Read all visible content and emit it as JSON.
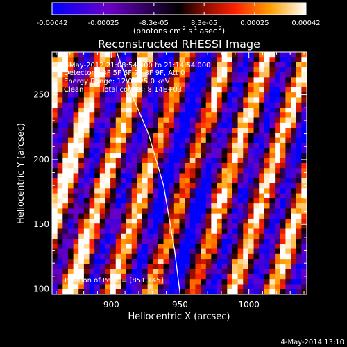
{
  "chart_data": {
    "type": "heatmap",
    "title": "Reconstructed RHESSI Image",
    "xlabel": "Heliocentric X (arcsec)",
    "ylabel": "Heliocentric Y (arcsec)",
    "xlim": [
      857,
      1042
    ],
    "ylim": [
      96,
      283
    ],
    "xticks": [
      900,
      950,
      1000
    ],
    "yticks": [
      100,
      150,
      200,
      250
    ],
    "grid": false,
    "colorbar": {
      "placement": "top",
      "min": -0.00042,
      "max": 0.00042,
      "ticks": [
        -0.00042,
        -0.00025,
        -8.3e-05,
        8.3e-05,
        0.00025,
        0.00042
      ],
      "tick_labels": [
        "-0.00042",
        "-0.00025",
        "-8.3e-05",
        "8.3e-05",
        "0.00025",
        "0.00042"
      ],
      "unit_parts": [
        "(photons cm",
        "-2",
        " s",
        "-1",
        " asec",
        "-2",
        ")"
      ],
      "colors": [
        "#0000ff",
        "#6a00c8",
        "#000000",
        "#8a0c00",
        "#ff2000",
        "#ffa000",
        "#ffffff"
      ]
    },
    "annotations": {
      "time": "1-May-2012 21:08:54.000 to 21:14:54.000",
      "detectors": "Detectors: 3F 5F 6F 7F 8F 9F, Att 0",
      "energy": "Energy Range: 12.0 - 25.0 keV",
      "method": "Clean",
      "counts": "Total counts: 8.14E+03",
      "peak": "Position of Peak = [851,145]"
    },
    "limb_arc": [
      [
        904,
        283
      ],
      [
        915,
        250
      ],
      [
        927,
        220
      ],
      [
        938,
        180
      ],
      [
        946,
        130
      ],
      [
        950,
        96
      ]
    ],
    "grid_size": [
      48,
      48
    ]
  },
  "footer": {
    "timestamp": "4-May-2014 13:10"
  }
}
